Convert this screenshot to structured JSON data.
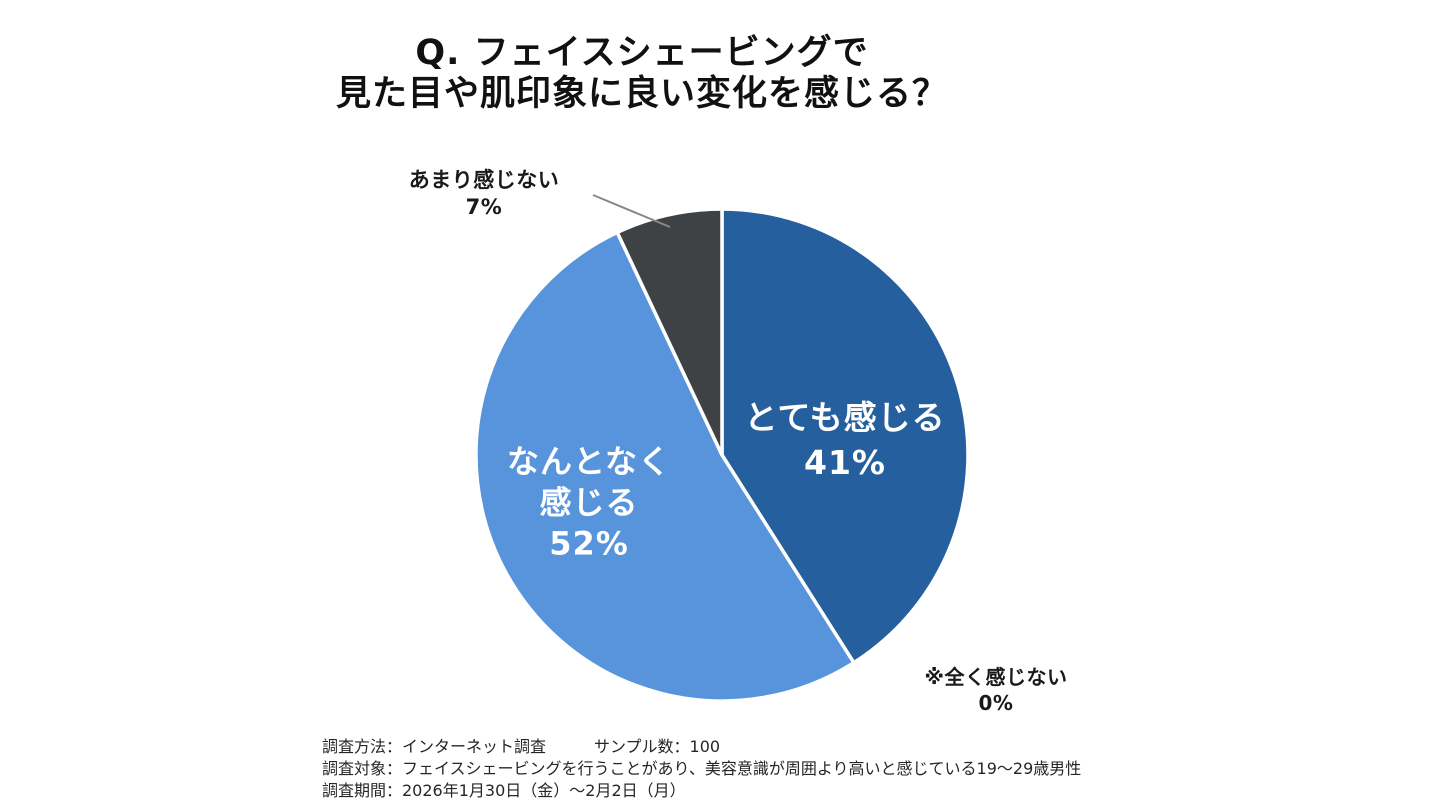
{
  "title": {
    "line1": "Q. フェイスシェービングで",
    "line2": "見た目や肌印象に良い変化を感じる？"
  },
  "chart_data": {
    "type": "pie",
    "title": "Q. フェイスシェービングで見た目や肌印象に良い変化を感じる？",
    "categories": [
      "とても感じる",
      "なんとなく感じる",
      "あまり感じない",
      "全く感じない"
    ],
    "values": [
      41,
      52,
      7,
      0
    ],
    "start_angle_deg": -90,
    "direction": "clockwise",
    "separator_color": "#ffffff",
    "slices": [
      {
        "key": "totemo-kanjiru",
        "name": "とても感じる",
        "value": 41,
        "pct_text": "41%",
        "label_lines": [
          "とても感じる"
        ],
        "color": "#255f9e"
      },
      {
        "key": "nantonaku-kanjiru",
        "name": "なんとなく感じる",
        "value": 52,
        "pct_text": "52%",
        "label_lines": [
          "なんとなく",
          "感じる"
        ],
        "color": "#5894db"
      },
      {
        "key": "amari-kanjinai",
        "name": "あまり感じない",
        "value": 7,
        "pct_text": "7%",
        "label_lines": [
          "あまり感じない"
        ],
        "color": "#3f4245"
      },
      {
        "key": "mattaku-kanjinai",
        "name": "※全く感じない",
        "value": 0,
        "pct_text": "0%",
        "label_lines": [
          "※全く感じない"
        ],
        "color": "#3f4245"
      }
    ],
    "leader_line_color": "#888888"
  },
  "footer": {
    "line1": "調査方法：インターネット調査　　　サンプル数：100",
    "line2": "調査対象：フェイスシェービングを行うことがあり、美容意識が周囲より高いと感じている19〜29歳男性",
    "line3": "調査期間：2026年1月30日（金）〜2月2日（月）"
  }
}
